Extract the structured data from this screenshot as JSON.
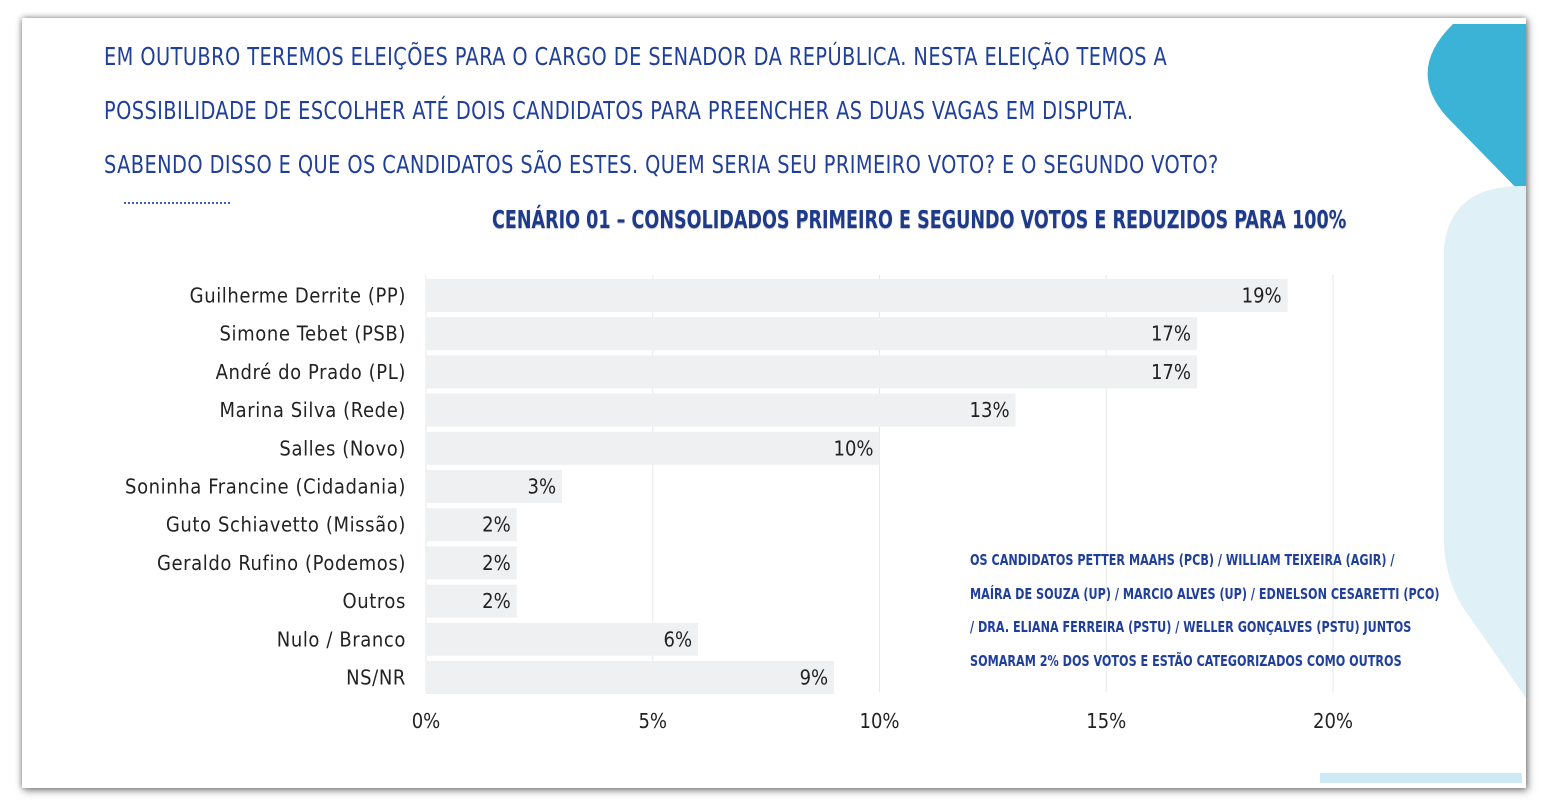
{
  "question": {
    "lines": [
      "EM OUTUBRO TEREMOS ELEIÇÕES PARA O CARGO DE SENADOR DA REPÚBLICA. NESTA ELEIÇÃO TEMOS A",
      "POSSIBILIDADE DE ESCOLHER ATÉ DOIS CANDIDATOS PARA PREENCHER AS DUAS VAGAS EM DISPUTA.",
      "SABENDO DISSO E QUE OS CANDIDATOS SÃO ESTES. QUEM SERIA SEU PRIMEIRO VOTO? E O SEGUNDO VOTO?"
    ]
  },
  "note": {
    "lines": [
      "OS CANDIDATOS PETTER MAAHS (PCB) / WILLIAM TEIXEIRA (AGIR) /",
      "MAÍRA DE SOUZA (UP) / MARCIO ALVES (UP) / EDNELSON CESARETTI (PCO)",
      "/ DRA. ELIANA FERREIRA (PSTU) / WELLER GONÇALVES (PSTU) JUNTOS",
      "SOMARAM 2% DOS VOTOS E ESTÃO CATEGORIZADOS COMO OUTROS"
    ]
  },
  "colors": {
    "text_blue": "#1f3f9a",
    "bar": "#eef0f1",
    "accent_teal": "#3bb3d6",
    "accent_light": "#dff0f7"
  },
  "chart_data": {
    "type": "bar",
    "orientation": "horizontal",
    "title": "CENÁRIO 01 – CONSOLIDADOS PRIMEIRO E SEGUNDO VOTOS E REDUZIDOS PARA 100%",
    "categories": [
      "Guilherme Derrite (PP)",
      "Simone Tebet (PSB)",
      "André do Prado (PL)",
      "Marina Silva (Rede)",
      "Salles (Novo)",
      "Soninha Francine (Cidadania)",
      "Guto Schiavetto (Missão)",
      "Geraldo Rufino (Podemos)",
      "Outros",
      "Nulo / Branco",
      "NS/NR"
    ],
    "values": [
      19,
      17,
      17,
      13,
      10,
      3,
      2,
      2,
      2,
      6,
      9
    ],
    "value_labels": [
      "19%",
      "17%",
      "17%",
      "13%",
      "10%",
      "3%",
      "2%",
      "2%",
      "2%",
      "6%",
      "9%"
    ],
    "xlim": [
      0,
      20
    ],
    "x_ticks": [
      0,
      5,
      10,
      15,
      20
    ],
    "x_tick_labels": [
      "0%",
      "5%",
      "10%",
      "15%",
      "20%"
    ],
    "grid": true,
    "legend": "none"
  }
}
